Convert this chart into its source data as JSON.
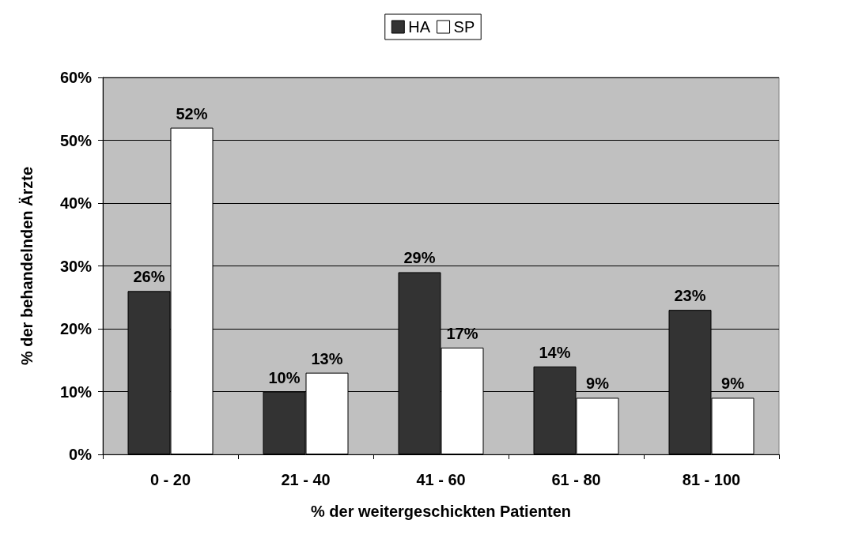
{
  "chart_data": {
    "type": "bar",
    "xlabel": "% der weitergeschickten Patienten",
    "ylabel": "% der behandelnden Ärzte",
    "categories": [
      "0 - 20",
      "21 - 40",
      "41 - 60",
      "61 - 80",
      "81 - 100"
    ],
    "series": [
      {
        "name": "HA",
        "color": "#333333",
        "values": [
          26,
          10,
          29,
          14,
          23
        ],
        "value_labels": [
          "26%",
          "10%",
          "29%",
          "14%",
          "23%"
        ]
      },
      {
        "name": "SP",
        "color": "#ffffff",
        "values": [
          52,
          13,
          17,
          9,
          9
        ],
        "value_labels": [
          "52%",
          "13%",
          "17%",
          "9%",
          "9%"
        ]
      }
    ],
    "ylim": [
      0,
      60
    ],
    "yticks": [
      {
        "value": 0,
        "label": "0%"
      },
      {
        "value": 10,
        "label": "10%"
      },
      {
        "value": 20,
        "label": "20%"
      },
      {
        "value": 30,
        "label": "30%"
      },
      {
        "value": 40,
        "label": "40%"
      },
      {
        "value": 50,
        "label": "50%"
      },
      {
        "value": 60,
        "label": "60%"
      }
    ],
    "grid": "y",
    "legend": "top"
  }
}
